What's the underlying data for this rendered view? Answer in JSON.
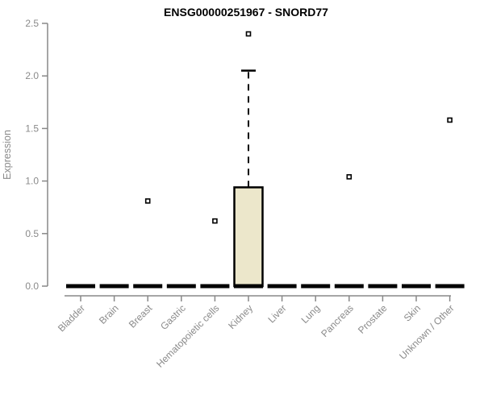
{
  "chart_data": {
    "type": "boxplot",
    "title": "ENSG00000251967 - SNORD77",
    "xlabel": "",
    "ylabel": "Expression",
    "ylim": [
      0,
      2.5
    ],
    "ytick_labels": [
      "0.0",
      "0.5",
      "1.0",
      "1.5",
      "2.0",
      "2.5"
    ],
    "grid": false,
    "legend": "none",
    "categories": [
      "Bladder",
      "Brain",
      "Breast",
      "Gastric",
      "Hematopoietic cells",
      "Kidney",
      "Liver",
      "Lung",
      "Pancreas",
      "Prostate",
      "Skin",
      "Unknown / Other"
    ],
    "series": [
      {
        "category": "Bladder",
        "median": 0,
        "q1": 0,
        "q3": 0,
        "whisker_low": 0,
        "whisker_high": 0,
        "outliers": []
      },
      {
        "category": "Brain",
        "median": 0,
        "q1": 0,
        "q3": 0,
        "whisker_low": 0,
        "whisker_high": 0,
        "outliers": []
      },
      {
        "category": "Breast",
        "median": 0,
        "q1": 0,
        "q3": 0,
        "whisker_low": 0,
        "whisker_high": 0,
        "outliers": [
          0.81
        ]
      },
      {
        "category": "Gastric",
        "median": 0,
        "q1": 0,
        "q3": 0,
        "whisker_low": 0,
        "whisker_high": 0,
        "outliers": []
      },
      {
        "category": "Hematopoietic cells",
        "median": 0,
        "q1": 0,
        "q3": 0,
        "whisker_low": 0,
        "whisker_high": 0,
        "outliers": [
          0.62
        ]
      },
      {
        "category": "Kidney",
        "median": 0,
        "q1": 0,
        "q3": 0.94,
        "whisker_low": 0,
        "whisker_high": 2.05,
        "outliers": [
          2.4
        ]
      },
      {
        "category": "Liver",
        "median": 0,
        "q1": 0,
        "q3": 0,
        "whisker_low": 0,
        "whisker_high": 0,
        "outliers": []
      },
      {
        "category": "Lung",
        "median": 0,
        "q1": 0,
        "q3": 0,
        "whisker_low": 0,
        "whisker_high": 0,
        "outliers": []
      },
      {
        "category": "Pancreas",
        "median": 0,
        "q1": 0,
        "q3": 0,
        "whisker_low": 0,
        "whisker_high": 0,
        "outliers": [
          1.04
        ]
      },
      {
        "category": "Prostate",
        "median": 0,
        "q1": 0,
        "q3": 0,
        "whisker_low": 0,
        "whisker_high": 0,
        "outliers": []
      },
      {
        "category": "Skin",
        "median": 0,
        "q1": 0,
        "q3": 0,
        "whisker_low": 0,
        "whisker_high": 0,
        "outliers": []
      },
      {
        "category": "Unknown / Other",
        "median": 0,
        "q1": 0,
        "q3": 0,
        "whisker_low": 0,
        "whisker_high": 0,
        "outliers": [
          1.58
        ]
      }
    ],
    "colors": {
      "box_fill": "#ECE7CB",
      "box_border": "#000000",
      "median_bar": "#000000",
      "whisker": "#000000",
      "outlier_stroke": "#000000",
      "outlier_fill": "#ffffff",
      "axis_line": "#888888",
      "tick_text": "#8a8a8a",
      "title_text": "#000000"
    }
  }
}
